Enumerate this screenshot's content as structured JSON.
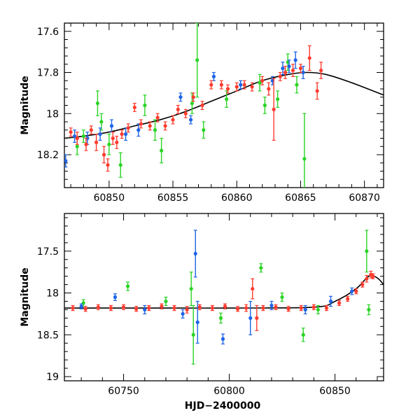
{
  "chart_data": [
    {
      "type": "scatter",
      "panel": "top",
      "xlabel": "",
      "ylabel": "Magnitude",
      "xlim": [
        60846.5,
        60871.5
      ],
      "ylim": [
        18.36,
        17.56
      ],
      "y_inverted": true,
      "xticks": [
        60850,
        60855,
        60860,
        60865,
        60870
      ],
      "yticks": [
        17.6,
        17.8,
        18,
        18.2
      ],
      "ytick_labels": [
        "17.6",
        "17.8",
        "18",
        "18.2"
      ],
      "model_curve": {
        "color": "#000000",
        "x": [
          60846.5,
          60848,
          60850,
          60852,
          60854,
          60856,
          60858,
          60860,
          60862,
          60864,
          60865.5,
          60867,
          60869,
          60871.5
        ],
        "y": [
          18.12,
          18.11,
          18.09,
          18.06,
          18.03,
          17.99,
          17.94,
          17.89,
          17.84,
          17.81,
          17.8,
          17.81,
          17.85,
          17.91
        ]
      },
      "series": [
        {
          "color": "#ff3b2f",
          "points": [
            [
              60847.0,
              18.09,
              0.02
            ],
            [
              60847.5,
              18.12,
              0.03
            ],
            [
              60848.2,
              18.15,
              0.03
            ],
            [
              60848.6,
              18.08,
              0.02
            ],
            [
              60849.0,
              18.14,
              0.04
            ],
            [
              60849.6,
              18.2,
              0.04
            ],
            [
              60849.9,
              18.25,
              0.03
            ],
            [
              60850.3,
              18.12,
              0.03
            ],
            [
              60850.6,
              18.14,
              0.03
            ],
            [
              60851.0,
              18.1,
              0.02
            ],
            [
              60851.5,
              18.07,
              0.02
            ],
            [
              60852.0,
              17.97,
              0.02
            ],
            [
              60852.5,
              18.05,
              0.02
            ],
            [
              60853.2,
              18.06,
              0.02
            ],
            [
              60853.8,
              18.02,
              0.02
            ],
            [
              60854.4,
              18.06,
              0.02
            ],
            [
              60855.0,
              18.03,
              0.02
            ],
            [
              60855.4,
              17.98,
              0.02
            ],
            [
              60856.0,
              18.0,
              0.02
            ],
            [
              60856.6,
              17.92,
              0.02
            ],
            [
              60857.3,
              17.96,
              0.02
            ],
            [
              60858.0,
              17.86,
              0.02
            ],
            [
              60858.8,
              17.86,
              0.02
            ],
            [
              60859.3,
              17.88,
              0.02
            ],
            [
              60860.0,
              17.87,
              0.02
            ],
            [
              60860.6,
              17.86,
              0.02
            ],
            [
              60861.2,
              17.87,
              0.02
            ],
            [
              60862.0,
              17.84,
              0.02
            ],
            [
              60862.5,
              17.88,
              0.03
            ],
            [
              60862.9,
              17.98,
              0.15
            ],
            [
              60863.4,
              17.82,
              0.02
            ],
            [
              60863.8,
              17.8,
              0.03
            ],
            [
              60864.4,
              17.79,
              0.03
            ],
            [
              60865.0,
              17.78,
              0.02
            ],
            [
              60865.7,
              17.73,
              0.06
            ],
            [
              60866.3,
              17.89,
              0.04
            ],
            [
              60866.6,
              17.79,
              0.04
            ]
          ]
        },
        {
          "color": "#2ad424",
          "points": [
            [
              60847.5,
              18.16,
              0.04
            ],
            [
              60848.0,
              18.11,
              0.03
            ],
            [
              60849.1,
              17.95,
              0.06
            ],
            [
              60849.4,
              18.04,
              0.04
            ],
            [
              60850.0,
              18.15,
              0.05
            ],
            [
              60850.9,
              18.25,
              0.06
            ],
            [
              60852.8,
              17.96,
              0.05
            ],
            [
              60853.6,
              18.08,
              0.05
            ],
            [
              60854.1,
              18.18,
              0.06
            ],
            [
              60856.5,
              17.95,
              0.05
            ],
            [
              60856.9,
              17.74,
              0.18
            ],
            [
              60857.4,
              18.08,
              0.04
            ],
            [
              60859.2,
              17.93,
              0.04
            ],
            [
              60861.8,
              17.85,
              0.04
            ],
            [
              60862.2,
              17.96,
              0.04
            ],
            [
              60863.2,
              17.93,
              0.04
            ],
            [
              60864.0,
              17.75,
              0.04
            ],
            [
              60864.7,
              17.86,
              0.04
            ],
            [
              60865.3,
              18.22,
              0.22
            ]
          ]
        },
        {
          "color": "#1d64e8",
          "points": [
            [
              60846.6,
              18.23,
              0.03
            ],
            [
              60847.3,
              18.11,
              0.03
            ],
            [
              60848.3,
              18.12,
              0.03
            ],
            [
              60849.3,
              18.1,
              0.03
            ],
            [
              60850.2,
              18.06,
              0.03
            ],
            [
              60851.3,
              18.1,
              0.03
            ],
            [
              60852.3,
              18.08,
              0.03
            ],
            [
              60855.6,
              17.92,
              0.02
            ],
            [
              60856.4,
              18.03,
              0.02
            ],
            [
              60858.2,
              17.82,
              0.02
            ],
            [
              60860.3,
              17.86,
              0.02
            ],
            [
              60862.8,
              17.84,
              0.02
            ],
            [
              60863.6,
              17.78,
              0.03
            ],
            [
              60864.1,
              17.77,
              0.03
            ],
            [
              60864.6,
              17.74,
              0.04
            ],
            [
              60865.2,
              17.8,
              0.03
            ]
          ]
        }
      ]
    },
    {
      "type": "scatter",
      "panel": "bottom",
      "xlabel": "HJD−2400000",
      "ylabel": "Magnitude",
      "xlim": [
        60722,
        60873
      ],
      "ylim": [
        19.05,
        17.05
      ],
      "y_inverted": true,
      "xticks": [
        60750,
        60800,
        60850
      ],
      "yticks": [
        17.5,
        18,
        18.5,
        19
      ],
      "ytick_labels": [
        "17.5",
        "18",
        "18.5",
        "19"
      ],
      "model_curve": {
        "color": "#000000",
        "x": [
          60722,
          60760,
          60800,
          60840,
          60850,
          60860,
          60866,
          60870,
          60873
        ],
        "y": [
          18.18,
          18.18,
          18.18,
          18.17,
          18.1,
          17.95,
          17.8,
          17.82,
          17.9
        ]
      },
      "series": [
        {
          "color": "#ff3b2f",
          "points": [
            [
              60726,
              18.18,
              0.03
            ],
            [
              60732,
              18.19,
              0.03
            ],
            [
              60738,
              18.17,
              0.03
            ],
            [
              60744,
              18.18,
              0.03
            ],
            [
              60750,
              18.17,
              0.03
            ],
            [
              60756,
              18.19,
              0.03
            ],
            [
              60762,
              18.18,
              0.03
            ],
            [
              60768,
              18.16,
              0.03
            ],
            [
              60774,
              18.18,
              0.03
            ],
            [
              60780,
              18.2,
              0.04
            ],
            [
              60786,
              18.17,
              0.03
            ],
            [
              60792,
              18.18,
              0.03
            ],
            [
              60798,
              18.16,
              0.03
            ],
            [
              60804,
              18.19,
              0.03
            ],
            [
              60808,
              18.18,
              0.04
            ],
            [
              60811,
              17.95,
              0.12
            ],
            [
              60813,
              18.3,
              0.15
            ],
            [
              60816,
              18.18,
              0.03
            ],
            [
              60822,
              18.17,
              0.03
            ],
            [
              60828,
              18.19,
              0.03
            ],
            [
              60834,
              18.18,
              0.03
            ],
            [
              60840,
              18.17,
              0.03
            ],
            [
              60846,
              18.18,
              0.03
            ],
            [
              60852,
              18.12,
              0.03
            ],
            [
              60856,
              18.07,
              0.03
            ],
            [
              60860,
              17.98,
              0.03
            ],
            [
              60863,
              17.9,
              0.03
            ],
            [
              60865,
              17.83,
              0.04
            ],
            [
              60867,
              17.78,
              0.04
            ],
            [
              60868,
              17.8,
              0.03
            ]
          ]
        },
        {
          "color": "#2ad424",
          "points": [
            [
              60731,
              18.12,
              0.04
            ],
            [
              60752,
              17.92,
              0.05
            ],
            [
              60770,
              18.1,
              0.05
            ],
            [
              60782,
              17.95,
              0.2
            ],
            [
              60783,
              18.5,
              0.35
            ],
            [
              60796,
              18.3,
              0.06
            ],
            [
              60815,
              17.7,
              0.05
            ],
            [
              60825,
              18.05,
              0.05
            ],
            [
              60835,
              18.5,
              0.08
            ],
            [
              60842,
              18.2,
              0.05
            ],
            [
              60865,
              17.5,
              0.25
            ],
            [
              60866,
              18.2,
              0.06
            ]
          ]
        },
        {
          "color": "#1d64e8",
          "points": [
            [
              60730,
              18.16,
              0.03
            ],
            [
              60746,
              18.05,
              0.04
            ],
            [
              60760,
              18.2,
              0.05
            ],
            [
              60778,
              18.25,
              0.05
            ],
            [
              60784,
              17.53,
              0.28
            ],
            [
              60785,
              18.35,
              0.25
            ],
            [
              60797,
              18.55,
              0.06
            ],
            [
              60810,
              18.3,
              0.2
            ],
            [
              60820,
              18.15,
              0.05
            ],
            [
              60836,
              18.2,
              0.05
            ],
            [
              60848,
              18.1,
              0.06
            ],
            [
              60858,
              17.98,
              0.04
            ]
          ]
        }
      ]
    }
  ]
}
